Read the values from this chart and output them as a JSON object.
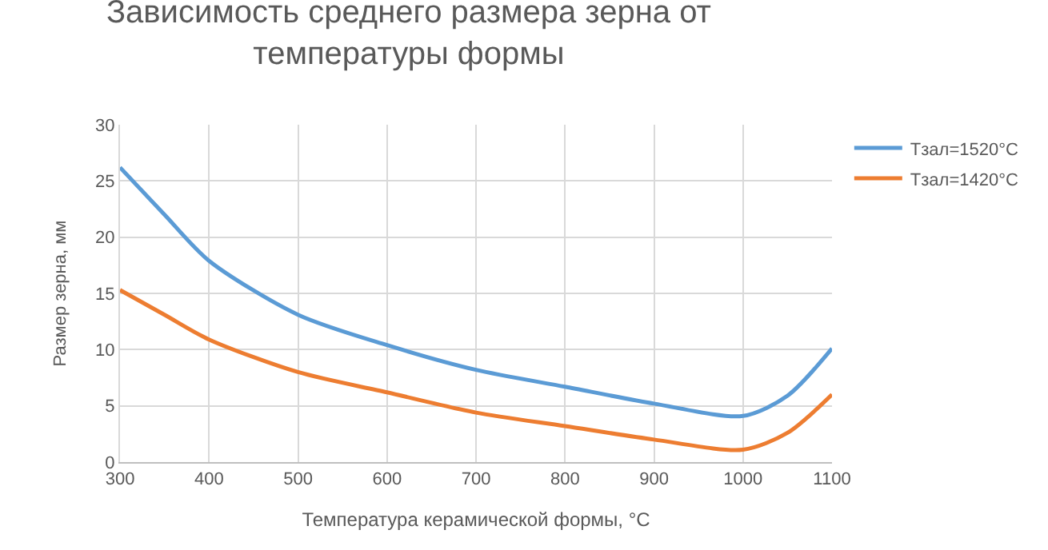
{
  "chart_data": {
    "type": "line",
    "title": "Зависимость среднего размера зерна от температуры формы",
    "xlabel": "Температура керамической формы, °С",
    "ylabel": "Размер зерна, мм",
    "x": [
      300,
      350,
      400,
      500,
      600,
      700,
      800,
      900,
      1000,
      1050,
      1100
    ],
    "series": [
      {
        "name": "Тзал=1520°С",
        "color": "#5b9bd5",
        "values": [
          26.2,
          22,
          17.9,
          13.1,
          10.4,
          8.2,
          6.7,
          5.2,
          4.1,
          5.9,
          10.1
        ]
      },
      {
        "name": "Тзал=1420°С",
        "color": "#ed7d31",
        "values": [
          15.3,
          13.1,
          10.9,
          8.0,
          6.2,
          4.4,
          3.2,
          2.0,
          1.1,
          2.6,
          6.0
        ]
      }
    ],
    "xlim": [
      300,
      1100
    ],
    "xticks": [
      300,
      400,
      500,
      600,
      700,
      800,
      900,
      1000,
      1100
    ],
    "ylim": [
      0,
      30
    ],
    "yticks": [
      0,
      5,
      10,
      15,
      20,
      25,
      30
    ],
    "grid": true,
    "legend": "top right",
    "marker": "none",
    "line_style": "solid"
  }
}
